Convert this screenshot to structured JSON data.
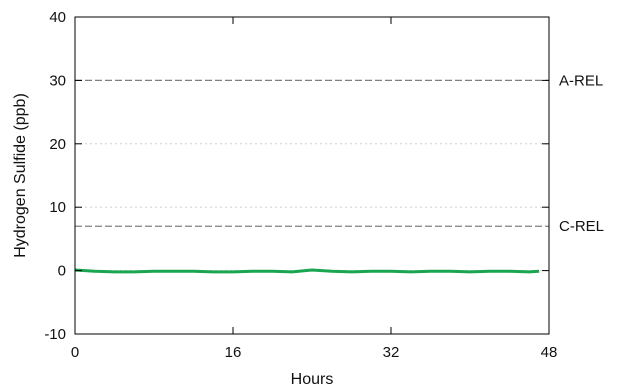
{
  "chart_data": {
    "type": "line",
    "xlabel": "Hours",
    "ylabel": "Hydrogen Sulfide (ppb)",
    "xlim": [
      0,
      48
    ],
    "ylim": [
      -10,
      40
    ],
    "x_ticks": [
      0,
      16,
      32,
      48
    ],
    "y_ticks": [
      -10,
      0,
      10,
      20,
      30,
      40
    ],
    "grid": "horizontal dotted",
    "reference_lines": [
      {
        "name": "A-REL",
        "value": 30,
        "style": "dashed",
        "color": "#808080"
      },
      {
        "name": "C-REL",
        "value": 7,
        "style": "dashed",
        "color": "#808080"
      }
    ],
    "series": [
      {
        "color": "#1aa550",
        "x": [
          0,
          2,
          4,
          6,
          8,
          10,
          12,
          14,
          16,
          18,
          20,
          22,
          24,
          26,
          28,
          30,
          32,
          34,
          36,
          38,
          40,
          42,
          44,
          46,
          47
        ],
        "values": [
          0.1,
          -0.1,
          -0.2,
          -0.2,
          -0.1,
          -0.1,
          -0.1,
          -0.2,
          -0.2,
          -0.1,
          -0.1,
          -0.2,
          0.1,
          -0.1,
          -0.2,
          -0.1,
          -0.1,
          -0.2,
          -0.1,
          -0.1,
          -0.2,
          -0.1,
          -0.1,
          -0.2,
          -0.1
        ]
      }
    ]
  }
}
